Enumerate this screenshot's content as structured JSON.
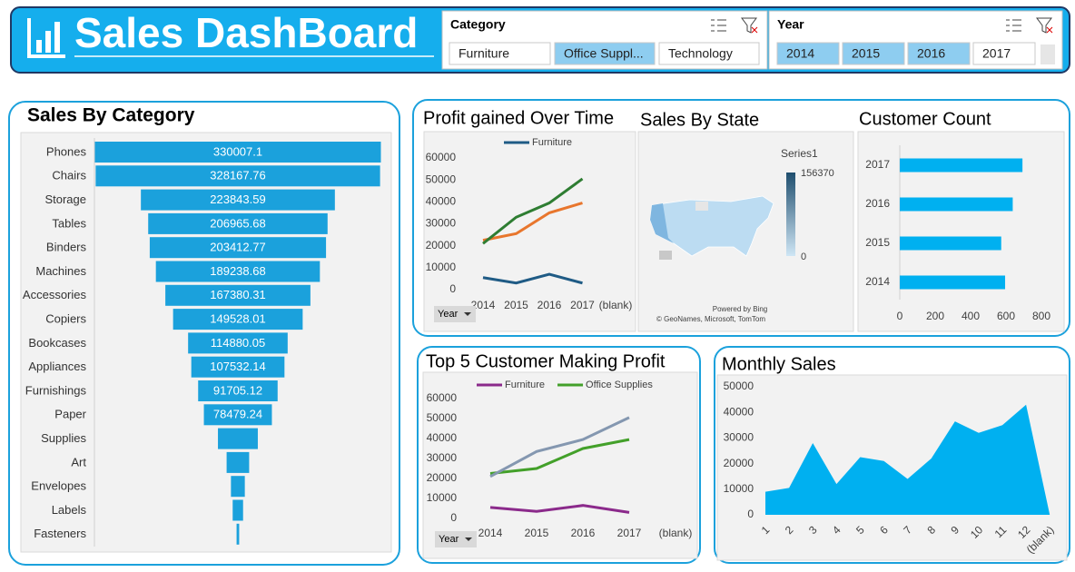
{
  "header": {
    "title": "Sales DashBoard"
  },
  "slicers": [
    {
      "title": "Category",
      "items": [
        "Furniture",
        "Office Suppl...",
        "Technology"
      ],
      "selected": [
        false,
        true,
        false
      ]
    },
    {
      "title": "Year",
      "items": [
        "2014",
        "2015",
        "2016",
        "2017"
      ],
      "selected": [
        true,
        true,
        true,
        false
      ]
    }
  ],
  "chart_data": [
    {
      "type": "funnel",
      "title": "Sales By Category",
      "color": "#1ba1dc",
      "categories": [
        "Phones",
        "Chairs",
        "Storage",
        "Tables",
        "Binders",
        "Machines",
        "Accessories",
        "Copiers",
        "Bookcases",
        "Appliances",
        "Furnishings",
        "Paper",
        "Supplies",
        "Art",
        "Envelopes",
        "Labels",
        "Fasteners"
      ],
      "values": [
        330007.1,
        328167.76,
        223843.59,
        206965.68,
        203412.77,
        189238.68,
        167380.31,
        149528.01,
        114880.05,
        107532.14,
        91705.12,
        78479.24,
        46000,
        26000,
        16000,
        12000,
        3000
      ],
      "value_labels": [
        "330007.1",
        "328167.76",
        "223843.59",
        "206965.68",
        "203412.77",
        "189238.68",
        "167380.31",
        "149528.01",
        "114880.05",
        "107532.14",
        "91705.12",
        "78479.24",
        null,
        null,
        null,
        null,
        null
      ]
    },
    {
      "type": "line",
      "title": "Profit gained Over Time",
      "filter_button": "Year",
      "categories": [
        "2014",
        "2015",
        "2016",
        "2017",
        "(blank)"
      ],
      "series": [
        {
          "name": "Furniture",
          "color": "#1f5b85",
          "values": [
            5500,
            3000,
            7000,
            3000,
            null
          ]
        },
        {
          "color": "#e8762d",
          "values": [
            22500,
            25500,
            35000,
            39500,
            null
          ]
        },
        {
          "color": "#2e7d32",
          "values": [
            21000,
            33000,
            39500,
            50500,
            null
          ]
        }
      ],
      "ylim": [
        0,
        60000
      ],
      "yticks": [
        0,
        10000,
        20000,
        30000,
        40000,
        50000,
        60000
      ]
    },
    {
      "type": "map",
      "title": "Sales By State",
      "legend_title": "Series1",
      "color_range": [
        0,
        156370
      ],
      "attribution": [
        "Powered by Bing",
        "© GeoNames, Microsoft, TomTom"
      ]
    },
    {
      "type": "hbar",
      "title": "Customer Count",
      "color": "#00b0f0",
      "categories": [
        "2014",
        "2015",
        "2016",
        "2017"
      ],
      "values": [
        595,
        573,
        638,
        693
      ],
      "xlim": [
        0,
        800
      ],
      "xticks": [
        0,
        200,
        400,
        600,
        800
      ]
    },
    {
      "type": "line",
      "title": "Top 5 Customer Making Profit",
      "filter_button": "Year",
      "categories": [
        "2014",
        "2015",
        "2016",
        "2017",
        "(blank)"
      ],
      "series": [
        {
          "name": "Furniture",
          "color": "#8b2a8b",
          "values": [
            5500,
            3500,
            6500,
            3000,
            null
          ]
        },
        {
          "name": "Office Supplies",
          "color": "#43a02a",
          "values": [
            22500,
            25000,
            35000,
            39500,
            null
          ]
        },
        {
          "color": "#8497b0",
          "values": [
            21000,
            33500,
            39500,
            50500,
            null
          ]
        }
      ],
      "ylim": [
        0,
        60000
      ],
      "yticks": [
        0,
        10000,
        20000,
        30000,
        40000,
        50000,
        60000
      ]
    },
    {
      "type": "area",
      "title": "Monthly Sales",
      "color": "#00b0f0",
      "categories": [
        "1",
        "2",
        "3",
        "4",
        "5",
        "6",
        "7",
        "8",
        "9",
        "10",
        "11",
        "12",
        "(blank)"
      ],
      "values": [
        9000,
        10500,
        28000,
        12000,
        22500,
        21000,
        14000,
        22000,
        36500,
        32000,
        35000,
        43000,
        null
      ],
      "ylim": [
        0,
        50000
      ],
      "yticks": [
        0,
        10000,
        20000,
        30000,
        40000,
        50000
      ]
    }
  ]
}
